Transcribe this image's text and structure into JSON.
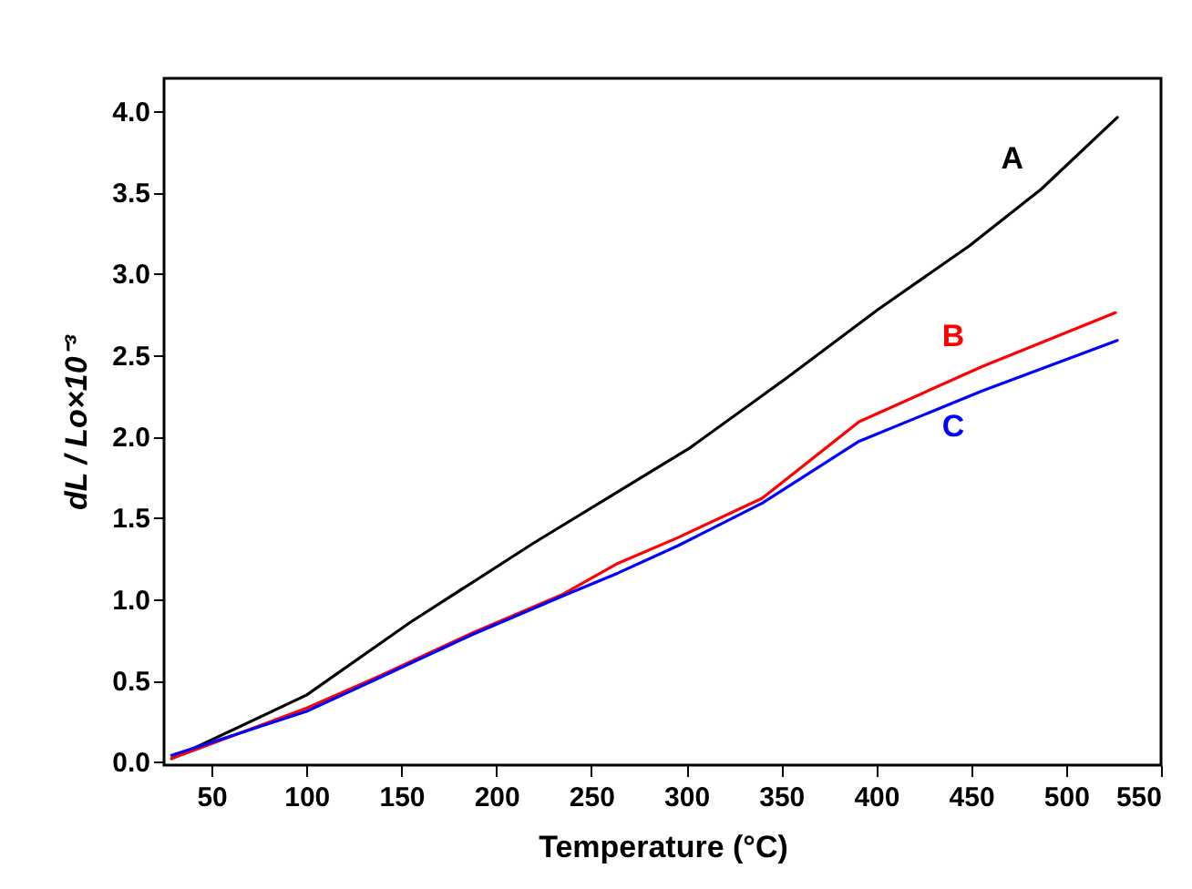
{
  "chart_data": {
    "type": "line",
    "xlabel": "Temperature (°C)",
    "ylabel": "dL / Lo×10⁻³",
    "xlim": [
      25,
      550
    ],
    "xticks": [
      50,
      100,
      150,
      200,
      250,
      300,
      350,
      400,
      450,
      500,
      550
    ],
    "ylim": [
      -0.02,
      4.2
    ],
    "yticks": [
      {
        "value": 0,
        "label": "0.0"
      },
      0.5,
      {
        "value": 1,
        "label": "1.0"
      },
      1.5,
      {
        "value": 2,
        "label": "2.0"
      },
      2.5,
      {
        "value": 3,
        "label": "3.0"
      },
      3.5,
      {
        "value": 4,
        "label": "4.0"
      }
    ],
    "grid": false,
    "line_style": "solid",
    "series": [
      {
        "name": "A",
        "color": "#000000",
        "x": [
          29,
          100,
          155,
          219,
          264,
          302,
          353,
          401,
          449,
          487,
          527
        ],
        "values": [
          0.02,
          0.41,
          0.86,
          1.34,
          1.66,
          1.93,
          2.36,
          2.78,
          3.17,
          3.52,
          3.96
        ]
      },
      {
        "name": "B",
        "color": "#ff0000",
        "x": [
          29,
          100,
          139,
          187,
          235,
          264,
          296,
          340,
          391,
          456,
          526
        ],
        "values": [
          0.02,
          0.33,
          0.53,
          0.79,
          1.03,
          1.22,
          1.38,
          1.62,
          2.09,
          2.43,
          2.76
        ]
      },
      {
        "name": "C",
        "color": "#0000ff",
        "x": [
          29,
          100,
          139,
          187,
          235,
          264,
          296,
          340,
          391,
          456,
          527
        ],
        "values": [
          0.04,
          0.31,
          0.52,
          0.78,
          1.02,
          1.16,
          1.33,
          1.59,
          1.97,
          2.28,
          2.59
        ]
      }
    ]
  }
}
